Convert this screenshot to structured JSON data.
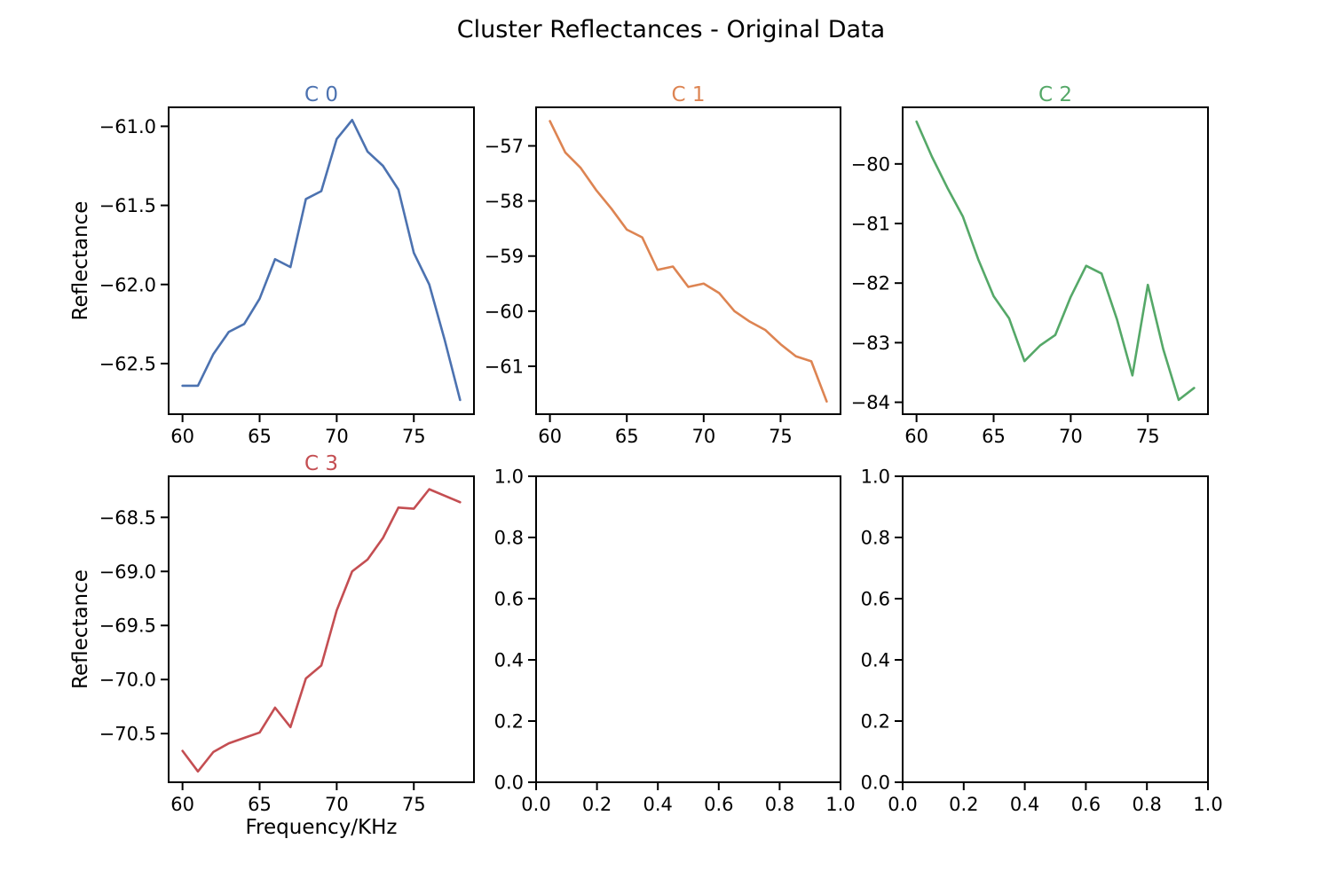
{
  "suptitle": "Cluster Reflectances - Original Data",
  "chart_data": [
    {
      "type": "line",
      "title": "C 0",
      "color": "#4c72b0",
      "xlabel": "",
      "ylabel": "Reflectance",
      "x": [
        60,
        61,
        62,
        63,
        64,
        65,
        66,
        67,
        68,
        69,
        70,
        71,
        72,
        73,
        74,
        75,
        76,
        77,
        78
      ],
      "values": [
        -62.64,
        -62.64,
        -62.44,
        -62.3,
        -62.25,
        -62.09,
        -61.84,
        -61.89,
        -61.46,
        -61.41,
        -61.08,
        -60.96,
        -61.16,
        -61.25,
        -61.4,
        -61.8,
        -62.0,
        -62.35,
        -62.73
      ],
      "xlim": [
        59.1,
        78.9
      ],
      "ylim": [
        -62.82,
        -60.88
      ],
      "xticks": [
        60,
        65,
        70,
        75
      ],
      "xtick_labels": [
        "60",
        "65",
        "70",
        "75"
      ],
      "yticks": [
        -61.0,
        -61.5,
        -62.0,
        -62.5
      ],
      "ytick_labels": [
        "−61.0",
        "−61.5",
        "−62.0",
        "−62.5"
      ]
    },
    {
      "type": "line",
      "title": "C 1",
      "color": "#dd8452",
      "xlabel": "",
      "ylabel": "",
      "x": [
        60,
        61,
        62,
        63,
        64,
        65,
        66,
        67,
        68,
        69,
        70,
        71,
        72,
        73,
        74,
        75,
        76,
        77,
        78
      ],
      "values": [
        -56.55,
        -57.12,
        -57.4,
        -57.8,
        -58.14,
        -58.52,
        -58.66,
        -59.25,
        -59.19,
        -59.56,
        -59.5,
        -59.67,
        -60.0,
        -60.19,
        -60.34,
        -60.6,
        -60.82,
        -60.91,
        -61.64
      ],
      "xlim": [
        59.1,
        78.9
      ],
      "ylim": [
        -61.87,
        -56.3
      ],
      "xticks": [
        60,
        65,
        70,
        75
      ],
      "xtick_labels": [
        "60",
        "65",
        "70",
        "75"
      ],
      "yticks": [
        -57,
        -58,
        -59,
        -60,
        -61
      ],
      "ytick_labels": [
        "−57",
        "−58",
        "−59",
        "−60",
        "−61"
      ]
    },
    {
      "type": "line",
      "title": "C 2",
      "color": "#55a868",
      "xlabel": "",
      "ylabel": "",
      "x": [
        60,
        61,
        62,
        63,
        64,
        65,
        66,
        67,
        68,
        69,
        70,
        71,
        72,
        73,
        74,
        75,
        76,
        77,
        78
      ],
      "values": [
        -79.29,
        -79.88,
        -80.4,
        -80.88,
        -81.6,
        -82.22,
        -82.59,
        -83.31,
        -83.05,
        -82.87,
        -82.23,
        -81.71,
        -81.84,
        -82.61,
        -83.55,
        -82.03,
        -83.11,
        -83.96,
        -83.76
      ],
      "xlim": [
        59.1,
        78.9
      ],
      "ylim": [
        -84.2,
        -79.05
      ],
      "xticks": [
        60,
        65,
        70,
        75
      ],
      "xtick_labels": [
        "60",
        "65",
        "70",
        "75"
      ],
      "yticks": [
        -80,
        -81,
        -82,
        -83,
        -84
      ],
      "ytick_labels": [
        "−80",
        "−81",
        "−82",
        "−83",
        "−84"
      ]
    },
    {
      "type": "line",
      "title": "C 3",
      "color": "#c44e52",
      "xlabel": "Frequency/KHz",
      "ylabel": "Reflectance",
      "x": [
        60,
        61,
        62,
        63,
        64,
        65,
        66,
        67,
        68,
        69,
        70,
        71,
        72,
        73,
        74,
        75,
        76,
        77,
        78
      ],
      "values": [
        -70.66,
        -70.85,
        -70.67,
        -70.59,
        -70.54,
        -70.49,
        -70.26,
        -70.44,
        -69.99,
        -69.87,
        -69.36,
        -69.0,
        -68.89,
        -68.69,
        -68.41,
        -68.42,
        -68.24,
        -68.3,
        -68.36
      ],
      "xlim": [
        59.1,
        78.9
      ],
      "ylim": [
        -70.95,
        -68.12
      ],
      "xticks": [
        60,
        65,
        70,
        75
      ],
      "xtick_labels": [
        "60",
        "65",
        "70",
        "75"
      ],
      "yticks": [
        -68.5,
        -69.0,
        -69.5,
        -70.0,
        -70.5
      ],
      "ytick_labels": [
        "−68.5",
        "−69.0",
        "−69.5",
        "−70.0",
        "−70.5"
      ]
    },
    {
      "type": "line",
      "title": "",
      "xlabel": "",
      "ylabel": "",
      "x": [],
      "values": [],
      "xlim": [
        0.0,
        1.0
      ],
      "ylim": [
        0.0,
        1.0
      ],
      "xticks": [
        0.0,
        0.2,
        0.4,
        0.6,
        0.8,
        1.0
      ],
      "xtick_labels": [
        "0.0",
        "0.2",
        "0.4",
        "0.6",
        "0.8",
        "1.0"
      ],
      "yticks": [
        0.0,
        0.2,
        0.4,
        0.6,
        0.8,
        1.0
      ],
      "ytick_labels": [
        "0.0",
        "0.2",
        "0.4",
        "0.6",
        "0.8",
        "1.0"
      ]
    },
    {
      "type": "line",
      "title": "",
      "xlabel": "",
      "ylabel": "",
      "x": [],
      "values": [],
      "xlim": [
        0.0,
        1.0
      ],
      "ylim": [
        0.0,
        1.0
      ],
      "xticks": [
        0.0,
        0.2,
        0.4,
        0.6,
        0.8,
        1.0
      ],
      "xtick_labels": [
        "0.0",
        "0.2",
        "0.4",
        "0.6",
        "0.8",
        "1.0"
      ],
      "yticks": [
        0.0,
        0.2,
        0.4,
        0.6,
        0.8,
        1.0
      ],
      "ytick_labels": [
        "0.0",
        "0.2",
        "0.4",
        "0.6",
        "0.8",
        "1.0"
      ]
    }
  ]
}
